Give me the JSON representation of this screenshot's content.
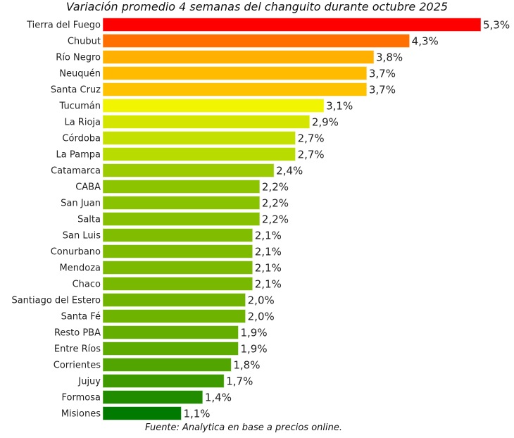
{
  "chart_data": {
    "type": "bar",
    "orientation": "horizontal",
    "title": "Variación promedio 4 semanas del changuito durante octubre 2025",
    "source": "Fuente: Analytica en base a precios online.",
    "xlim": [
      0,
      5.3
    ],
    "grid": false,
    "unit": "%",
    "categories": [
      "Tierra del Fuego",
      "Chubut",
      "Río Negro",
      "Neuquén",
      "Santa Cruz",
      "Tucumán",
      "La Rioja",
      "Córdoba",
      "La Pampa",
      "Catamarca",
      "CABA",
      "San Juan",
      "Salta",
      "San Luis",
      "Conurbano",
      "Mendoza",
      "Chaco",
      "Santiago del Estero",
      "Santa Fé",
      "Resto PBA",
      "Entre Ríos",
      "Corrientes",
      "Jujuy",
      "Formosa",
      "Misiones"
    ],
    "values": [
      5.3,
      4.3,
      3.8,
      3.7,
      3.7,
      3.1,
      2.9,
      2.7,
      2.7,
      2.4,
      2.2,
      2.2,
      2.2,
      2.1,
      2.1,
      2.1,
      2.1,
      2.0,
      2.0,
      1.9,
      1.9,
      1.8,
      1.7,
      1.4,
      1.1
    ],
    "labels": [
      "5,3%",
      "4,3%",
      "3,8%",
      "3,7%",
      "3,7%",
      "3,1%",
      "2,9%",
      "2,7%",
      "2,7%",
      "2,4%",
      "2,2%",
      "2,2%",
      "2,2%",
      "2,1%",
      "2,1%",
      "2,1%",
      "2,1%",
      "2,0%",
      "2,0%",
      "1,9%",
      "1,9%",
      "1,8%",
      "1,7%",
      "1,4%",
      "1,1%"
    ],
    "colors": [
      "#ff0000",
      "#ff7000",
      "#ffb000",
      "#ffbb00",
      "#ffc200",
      "#f2f500",
      "#d4e600",
      "#c4e000",
      "#b8dc00",
      "#9ccc00",
      "#8cc400",
      "#88c200",
      "#86c000",
      "#80bc00",
      "#7ebb00",
      "#7cba00",
      "#78b800",
      "#70b400",
      "#6eb300",
      "#64ae00",
      "#5eab00",
      "#52a400",
      "#3f9a00",
      "#228c00",
      "#007a00"
    ]
  }
}
